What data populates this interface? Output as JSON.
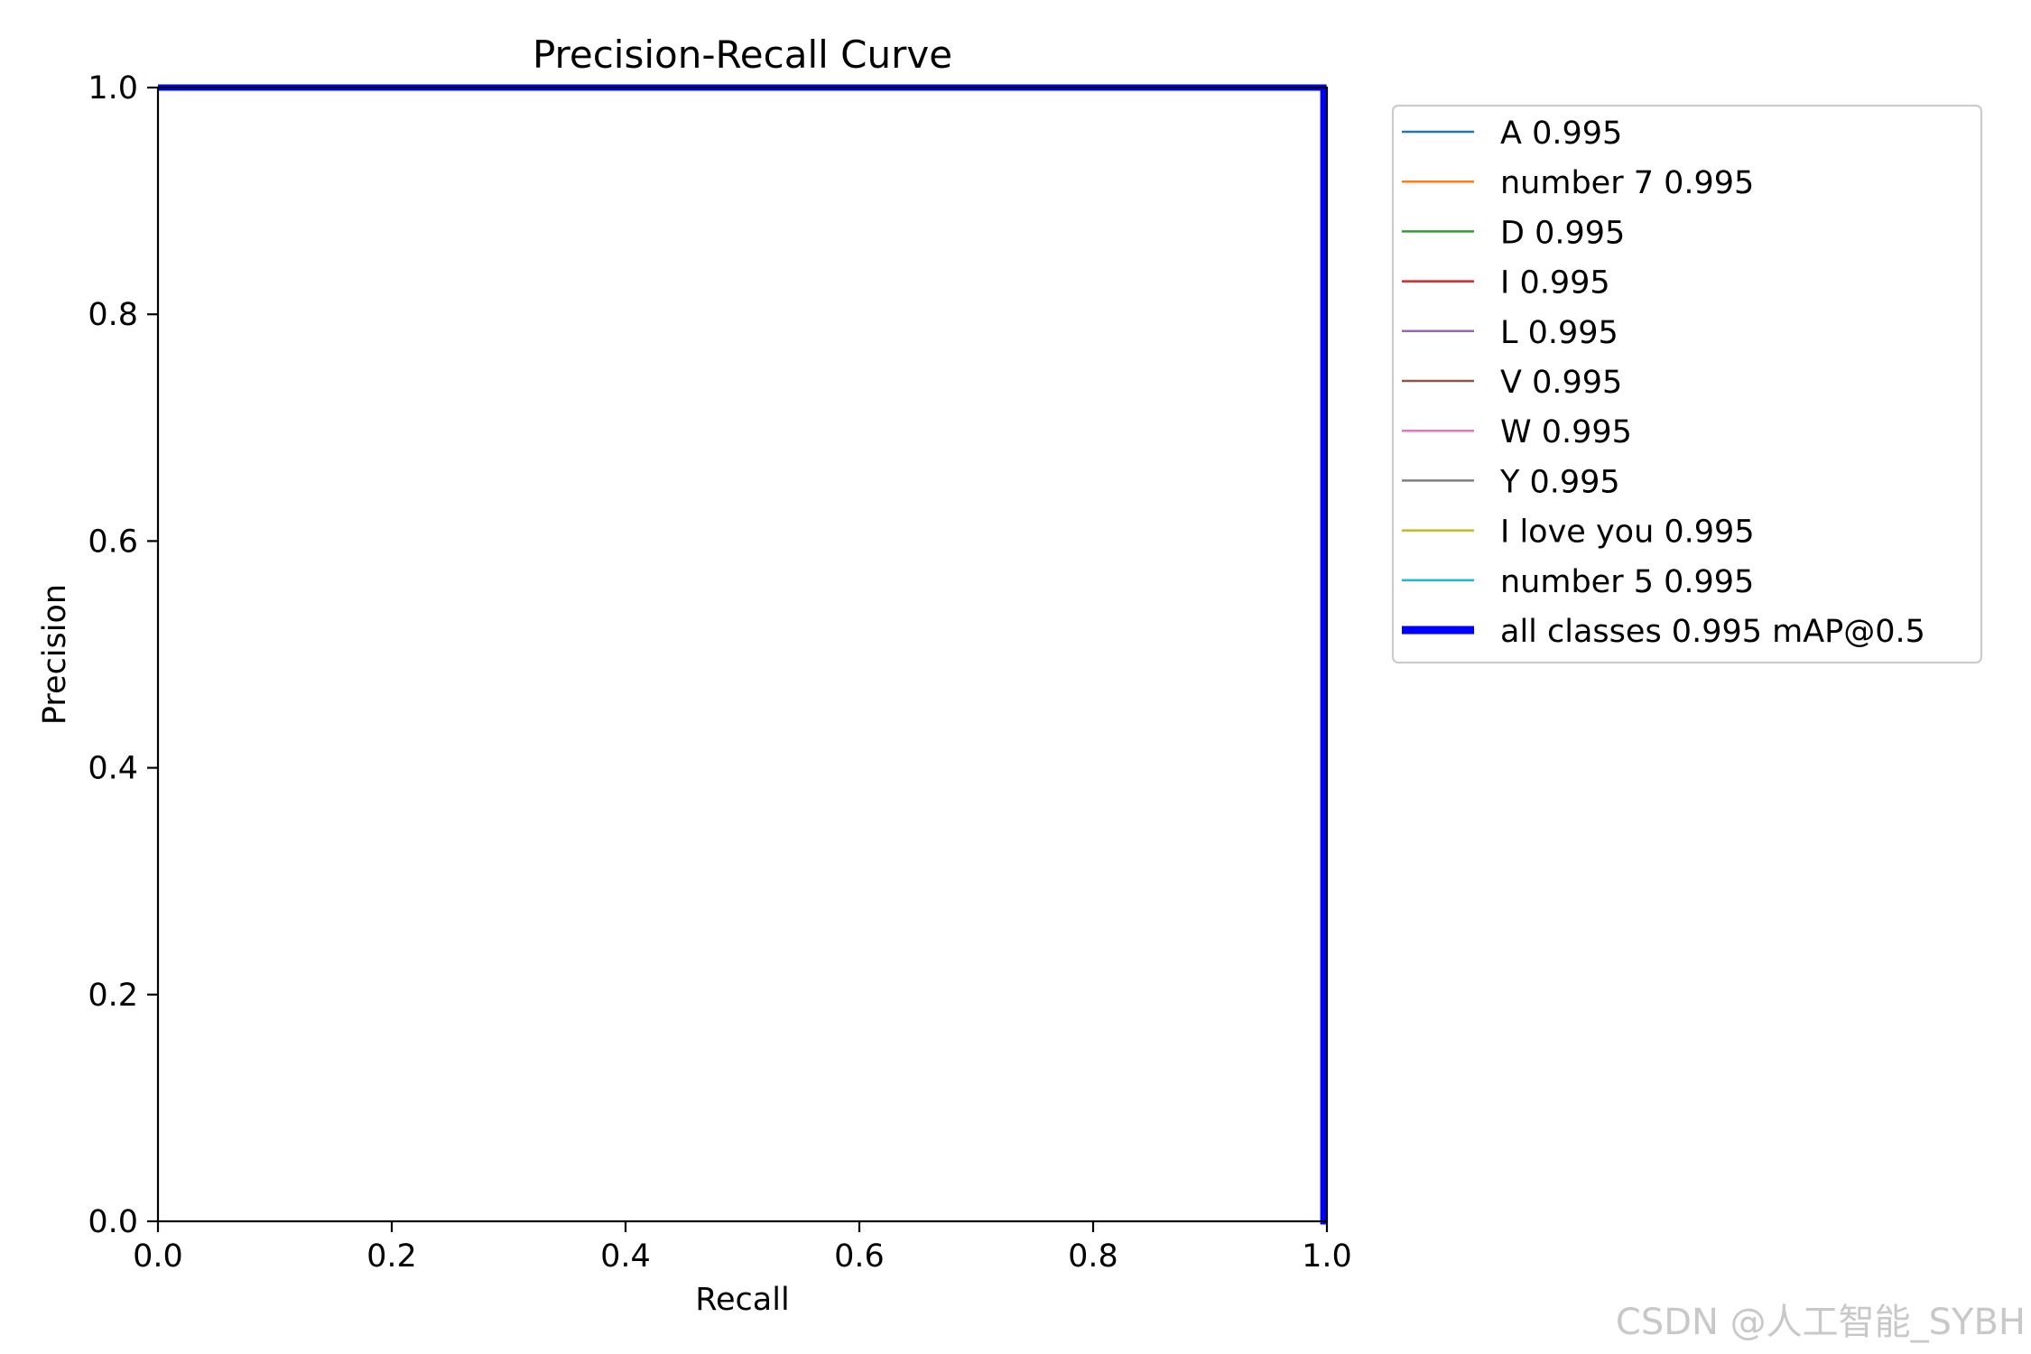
{
  "chart_data": {
    "type": "line",
    "title": "Precision-Recall Curve",
    "xlabel": "Recall",
    "ylabel": "Precision",
    "xlim": [
      0,
      1
    ],
    "ylim": [
      0,
      1
    ],
    "xticks": [
      "0.0",
      "0.2",
      "0.4",
      "0.6",
      "0.8",
      "1.0"
    ],
    "yticks": [
      "0.0",
      "0.2",
      "0.4",
      "0.6",
      "0.8",
      "1.0"
    ],
    "grid": false,
    "legend_position": "outside-right-top",
    "series": [
      {
        "name": "A 0.995",
        "color": "#1f77b4",
        "x": [
          0,
          0.997,
          0.997,
          1.0
        ],
        "y": [
          1.0,
          1.0,
          0.0,
          0.0
        ]
      },
      {
        "name": "number 7 0.995",
        "color": "#ff7f0e",
        "x": [
          0,
          0.997,
          0.997,
          1.0
        ],
        "y": [
          1.0,
          1.0,
          0.0,
          0.0
        ]
      },
      {
        "name": "D 0.995",
        "color": "#2ca02c",
        "x": [
          0,
          0.997,
          0.997,
          1.0
        ],
        "y": [
          1.0,
          1.0,
          0.0,
          0.0
        ]
      },
      {
        "name": "I 0.995",
        "color": "#d62728",
        "x": [
          0,
          0.997,
          0.997,
          1.0
        ],
        "y": [
          1.0,
          1.0,
          0.0,
          0.0
        ]
      },
      {
        "name": "L 0.995",
        "color": "#9467bd",
        "x": [
          0,
          0.997,
          0.997,
          1.0
        ],
        "y": [
          1.0,
          1.0,
          0.0,
          0.0
        ]
      },
      {
        "name": "V 0.995",
        "color": "#8c564b",
        "x": [
          0,
          0.997,
          0.997,
          1.0
        ],
        "y": [
          1.0,
          1.0,
          0.0,
          0.0
        ]
      },
      {
        "name": "W 0.995",
        "color": "#e377c2",
        "x": [
          0,
          0.997,
          0.997,
          1.0
        ],
        "y": [
          1.0,
          1.0,
          0.0,
          0.0
        ]
      },
      {
        "name": "Y 0.995",
        "color": "#7f7f7f",
        "x": [
          0,
          0.997,
          0.997,
          1.0
        ],
        "y": [
          1.0,
          1.0,
          0.0,
          0.0
        ]
      },
      {
        "name": "I love you 0.995",
        "color": "#bcbd22",
        "x": [
          0,
          0.997,
          0.997,
          1.0
        ],
        "y": [
          1.0,
          1.0,
          0.0,
          0.0
        ]
      },
      {
        "name": "number 5 0.995",
        "color": "#17becf",
        "x": [
          0,
          0.997,
          0.997,
          1.0
        ],
        "y": [
          1.0,
          1.0,
          0.0,
          0.0
        ]
      },
      {
        "name": "all classes 0.995 mAP@0.5",
        "color": "#0000ff",
        "bold": true,
        "x": [
          0,
          0.997,
          0.997,
          1.0
        ],
        "y": [
          1.0,
          1.0,
          0.0,
          0.0
        ]
      }
    ]
  },
  "watermark": "CSDN @人工智能_SYBH"
}
